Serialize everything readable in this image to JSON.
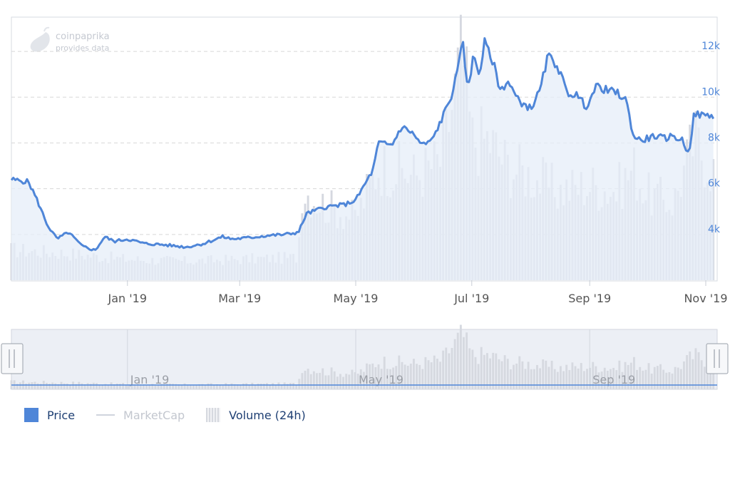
{
  "watermark": {
    "brand": "coinpaprika",
    "tagline": "provides data"
  },
  "colors": {
    "price_line": "#4f86d8",
    "price_fill": "#e6edf8",
    "volume": "#d5d8e0",
    "axis_text": "#4f86d8",
    "date_text": "#555555",
    "grid": "#d8d8d8"
  },
  "legend": {
    "price": "Price",
    "marketcap": "MarketCap",
    "volume": "Volume (24h)"
  },
  "chart_data": {
    "type": "line",
    "title": "",
    "x_tick_labels": [
      "Jan '19",
      "Mar '19",
      "May '19",
      "Jul '19",
      "Sep '19",
      "Nov '19"
    ],
    "y_tick_labels": [
      "4k",
      "6k",
      "8k",
      "10k",
      "12k"
    ],
    "y_ticks": [
      4000,
      6000,
      8000,
      10000,
      12000
    ],
    "ylim": [
      2000,
      13500
    ],
    "x_range": [
      "2018-11-01",
      "2019-11-07"
    ],
    "grid": true,
    "y_axis_side": "right",
    "series": [
      {
        "name": "Price",
        "x": [
          "2018-11-01",
          "2018-11-10",
          "2018-11-14",
          "2018-11-20",
          "2018-11-25",
          "2018-12-01",
          "2018-12-08",
          "2018-12-15",
          "2018-12-20",
          "2018-12-25",
          "2019-01-01",
          "2019-01-10",
          "2019-01-20",
          "2019-02-01",
          "2019-02-10",
          "2019-02-20",
          "2019-02-25",
          "2019-03-05",
          "2019-03-15",
          "2019-03-25",
          "2019-04-01",
          "2019-04-05",
          "2019-04-15",
          "2019-04-25",
          "2019-05-01",
          "2019-05-10",
          "2019-05-13",
          "2019-05-20",
          "2019-05-25",
          "2019-05-30",
          "2019-06-05",
          "2019-06-10",
          "2019-06-15",
          "2019-06-20",
          "2019-06-24",
          "2019-06-26",
          "2019-06-27",
          "2019-06-29",
          "2019-07-02",
          "2019-07-05",
          "2019-07-08",
          "2019-07-10",
          "2019-07-12",
          "2019-07-16",
          "2019-07-20",
          "2019-07-25",
          "2019-08-01",
          "2019-08-06",
          "2019-08-10",
          "2019-08-15",
          "2019-08-20",
          "2019-08-25",
          "2019-08-30",
          "2019-09-05",
          "2019-09-10",
          "2019-09-15",
          "2019-09-20",
          "2019-09-24",
          "2019-09-28",
          "2019-10-05",
          "2019-10-10",
          "2019-10-15",
          "2019-10-20",
          "2019-10-23",
          "2019-10-26",
          "2019-10-30",
          "2019-11-05"
        ],
        "values": [
          6400,
          6300,
          5600,
          4400,
          3800,
          4100,
          3500,
          3300,
          3900,
          3700,
          3800,
          3600,
          3550,
          3450,
          3600,
          3900,
          3800,
          3850,
          3950,
          4000,
          4100,
          4900,
          5200,
          5300,
          5500,
          6800,
          8000,
          7900,
          8700,
          8500,
          7900,
          8100,
          9000,
          10000,
          11200,
          12800,
          11500,
          10500,
          11800,
          11000,
          12500,
          11900,
          11600,
          10300,
          10700,
          9900,
          9500,
          10300,
          11800,
          11400,
          10200,
          10100,
          9600,
          10500,
          10300,
          10200,
          9900,
          8300,
          8100,
          8300,
          8200,
          8300,
          8100,
          7500,
          9300,
          9200,
          9200
        ]
      },
      {
        "name": "Volume (24h)",
        "x": [
          "2018-11-01",
          "2018-12-01",
          "2019-01-01",
          "2019-02-01",
          "2019-03-01",
          "2019-04-01",
          "2019-04-02",
          "2019-04-15",
          "2019-05-01",
          "2019-05-13",
          "2019-05-20",
          "2019-06-01",
          "2019-06-15",
          "2019-06-26",
          "2019-07-01",
          "2019-07-10",
          "2019-07-20",
          "2019-08-01",
          "2019-08-15",
          "2019-09-01",
          "2019-09-15",
          "2019-09-24",
          "2019-10-01",
          "2019-10-15",
          "2019-10-26",
          "2019-11-05"
        ],
        "values": [
          1600,
          1400,
          1100,
          1000,
          1100,
          1200,
          4900,
          3900,
          3300,
          6000,
          5900,
          5500,
          6300,
          12000,
          7400,
          7400,
          6000,
          5500,
          4700,
          5000,
          4700,
          5900,
          4500,
          4100,
          7400,
          5800
        ]
      }
    ],
    "navigator": {
      "x_tick_labels": [
        "Jan '19",
        "May '19",
        "Sep '19"
      ]
    }
  }
}
